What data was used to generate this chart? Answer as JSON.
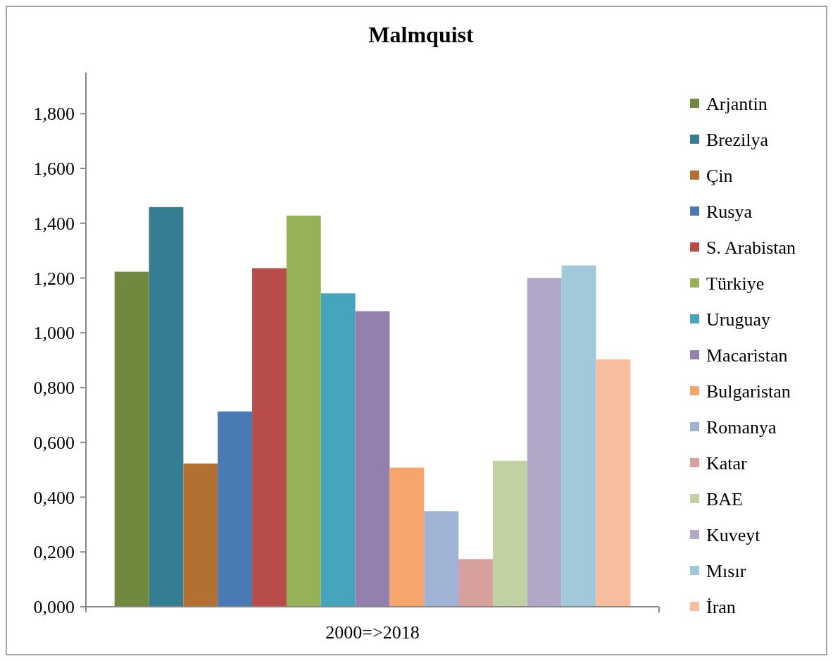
{
  "chart_data": {
    "type": "bar",
    "title": "Malmquist",
    "categories": [
      "2000=>2018"
    ],
    "series": [
      {
        "name": "Arjantin",
        "color": "#71893f",
        "values": [
          1.223
        ]
      },
      {
        "name": "Brezilya",
        "color": "#357d91",
        "values": [
          1.459
        ]
      },
      {
        "name": "Çin",
        "color": "#b37033",
        "values": [
          0.523
        ]
      },
      {
        "name": "Rusya",
        "color": "#4a7ab3",
        "values": [
          0.713
        ]
      },
      {
        "name": "S. Arabistan",
        "color": "#b84c4b",
        "values": [
          1.236
        ]
      },
      {
        "name": "Türkiye",
        "color": "#97b157",
        "values": [
          1.428
        ]
      },
      {
        "name": "Uruguay",
        "color": "#46a4bd",
        "values": [
          1.144
        ]
      },
      {
        "name": "Macaristan",
        "color": "#9480ad",
        "values": [
          1.079
        ]
      },
      {
        "name": "Bulgaristan",
        "color": "#f6a56d",
        "values": [
          0.508
        ]
      },
      {
        "name": "Romanya",
        "color": "#a1b3d4",
        "values": [
          0.349
        ]
      },
      {
        "name": "Katar",
        "color": "#d6a09f",
        "values": [
          0.174
        ]
      },
      {
        "name": "BAE",
        "color": "#c1d1a2",
        "values": [
          0.533
        ]
      },
      {
        "name": "Kuveyt",
        "color": "#b2a7c4",
        "values": [
          1.2
        ]
      },
      {
        "name": "Mısır",
        "color": "#a1c9d9",
        "values": [
          1.246
        ]
      },
      {
        "name": "İran",
        "color": "#f8bd9d",
        "values": [
          0.903
        ]
      }
    ],
    "ylim": [
      0,
      1.95
    ],
    "yticks": [
      {
        "value": 0,
        "label": "0,000"
      },
      {
        "value": 0.2,
        "label": "0,200"
      },
      {
        "value": 0.4,
        "label": "0,400"
      },
      {
        "value": 0.6,
        "label": "0,600"
      },
      {
        "value": 0.8,
        "label": "0,800"
      },
      {
        "value": 1.0,
        "label": "1,000"
      },
      {
        "value": 1.2,
        "label": "1,200"
      },
      {
        "value": 1.4,
        "label": "1,400"
      },
      {
        "value": 1.6,
        "label": "1,600"
      },
      {
        "value": 1.8,
        "label": "1,800"
      }
    ],
    "legend": "right"
  }
}
